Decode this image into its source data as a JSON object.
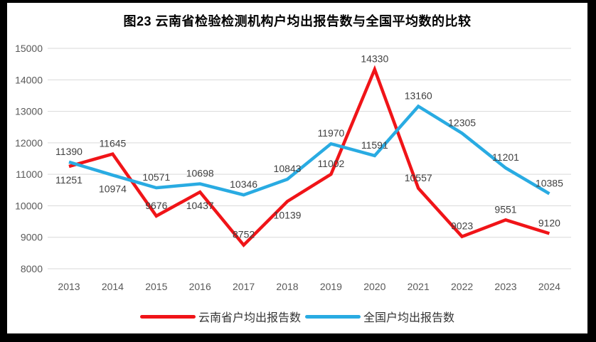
{
  "title": "图23 云南省检验检测机构户均出报告数与全国平均数的比较",
  "chart_data": {
    "type": "line",
    "x": [
      "2013",
      "2014",
      "2015",
      "2016",
      "2017",
      "2018",
      "2019",
      "2020",
      "2021",
      "2022",
      "2023",
      "2024"
    ],
    "series": [
      {
        "key": "yunnan",
        "name": "云南省户均出报告数",
        "color": "#f01418",
        "values": [
          11251,
          11645,
          9676,
          10437,
          8752,
          10139,
          11002,
          14330,
          10557,
          9023,
          9551,
          9120
        ]
      },
      {
        "key": "national",
        "name": "全国户均出报告数",
        "color": "#29abe2",
        "values": [
          11390,
          10974,
          10571,
          10698,
          10346,
          10843,
          11970,
          11591,
          13160,
          12305,
          11201,
          10385
        ]
      }
    ],
    "ylim": [
      8000,
      15000
    ],
    "yticks": [
      8000,
      9000,
      10000,
      11000,
      12000,
      13000,
      14000,
      15000
    ],
    "grid": true,
    "data_labels": true,
    "legend_position": "bottom",
    "colors": {
      "gridline": "#d9d9d9",
      "tick_label": "#595959",
      "data_label": "#404040",
      "title": "#000000",
      "frame": "#000000",
      "background": "#ffffff"
    }
  }
}
